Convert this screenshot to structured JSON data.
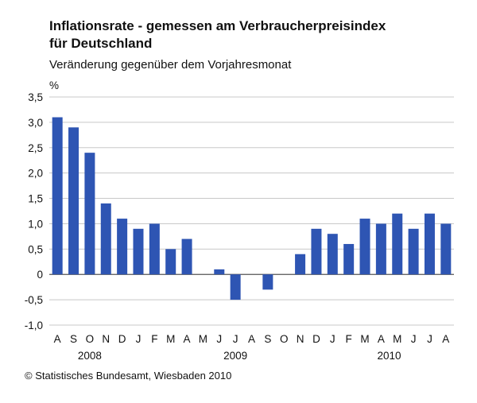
{
  "chart_data": {
    "type": "bar",
    "title_line1": "Inflationsrate - gemessen am Verbraucherpreisindex",
    "title_line2": "für Deutschland",
    "subtitle": "Veränderung gegenüber dem Vorjahresmonat",
    "ylabel": "%",
    "ylim": [
      -1.0,
      3.5
    ],
    "ytick_step": 0.5,
    "ytick_labels": [
      "-1,0",
      "-0,5",
      "0",
      "0,5",
      "1,0",
      "1,5",
      "2,0",
      "2,5",
      "3,0",
      "3,5"
    ],
    "categories": [
      "A",
      "S",
      "O",
      "N",
      "D",
      "J",
      "F",
      "M",
      "A",
      "M",
      "J",
      "J",
      "A",
      "S",
      "O",
      "N",
      "D",
      "J",
      "F",
      "M",
      "A",
      "M",
      "J",
      "J",
      "A"
    ],
    "values": [
      3.1,
      2.9,
      2.4,
      1.4,
      1.1,
      0.9,
      1.0,
      0.5,
      0.7,
      0.0,
      0.1,
      -0.5,
      0.0,
      -0.3,
      0.0,
      0.4,
      0.9,
      0.8,
      0.6,
      1.1,
      1.0,
      1.2,
      0.9,
      1.2,
      1.0
    ],
    "year_labels": [
      {
        "label": "2008",
        "center_index": 2
      },
      {
        "label": "2009",
        "center_index": 11
      },
      {
        "label": "2010",
        "center_index": 20.5
      }
    ],
    "bar_color": "#2e55b3",
    "grid": true
  },
  "footer": "© Statistisches Bundesamt, Wiesbaden 2010"
}
